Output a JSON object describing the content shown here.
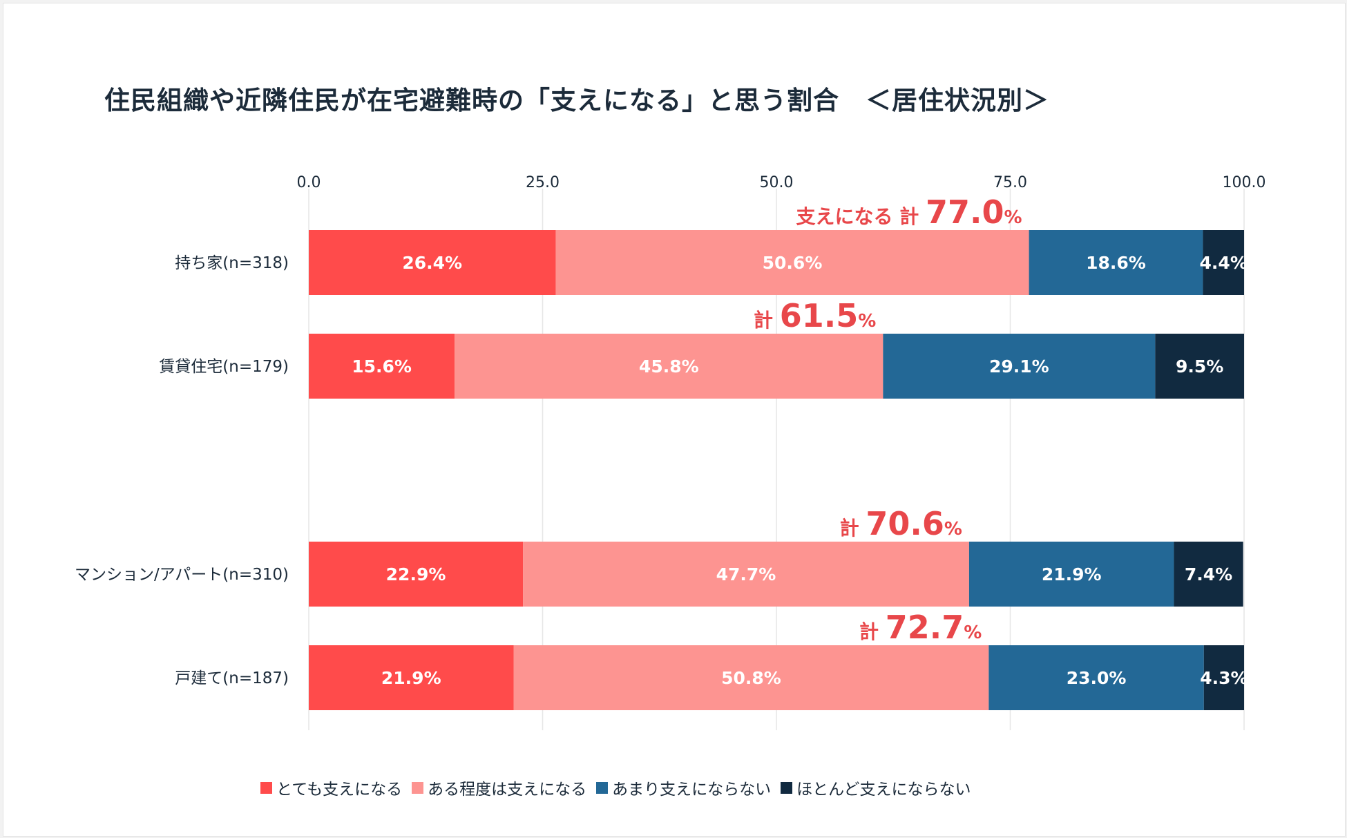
{
  "title": "住民組織や近隣住民が在宅避難時の「支えになる」と思う割合　＜居住状況別＞",
  "chart_data": {
    "type": "bar",
    "orientation": "horizontal",
    "stacked": true,
    "xlim": [
      0,
      100
    ],
    "ticks": [
      "0.0",
      "25.0",
      "50.0",
      "75.0",
      "100.0"
    ],
    "tick_values": [
      0,
      25,
      50,
      75,
      100
    ],
    "categories": [
      "持ち家(n=318)",
      "賃貸住宅(n=179)",
      "マンション/アパート(n=310)",
      "戸建て(n=187)"
    ],
    "series": [
      {
        "name": "とても支えになる",
        "color": "#ff4b4b",
        "values": [
          26.4,
          15.6,
          22.9,
          21.9
        ],
        "labels": [
          "26.4%",
          "15.6%",
          "22.9%",
          "21.9%"
        ]
      },
      {
        "name": "ある程度は支えになる",
        "color": "#fd9491",
        "values": [
          50.6,
          45.8,
          47.7,
          50.8
        ],
        "labels": [
          "50.6%",
          "45.8%",
          "47.7%",
          "50.8%"
        ]
      },
      {
        "name": "あまり支えにならない",
        "color": "#236896",
        "values": [
          18.6,
          29.1,
          21.9,
          23.0
        ],
        "labels": [
          "18.6%",
          "29.1%",
          "21.9%",
          "23.0%"
        ]
      },
      {
        "name": "ほとんど支えにならない",
        "color": "#112a40",
        "values": [
          4.4,
          9.5,
          7.4,
          4.3
        ],
        "labels": [
          "4.4%",
          "9.5%",
          "7.4%",
          "4.3%"
        ]
      }
    ],
    "totals": [
      {
        "prefix": "支えになる 計",
        "value": "77.0",
        "unit": "%"
      },
      {
        "prefix": "計",
        "value": "61.5",
        "unit": "%"
      },
      {
        "prefix": "計",
        "value": "70.6",
        "unit": "%"
      },
      {
        "prefix": "計",
        "value": "72.7",
        "unit": "%"
      }
    ],
    "total_color": "#e8474a",
    "grid": true,
    "legend_position": "bottom"
  }
}
